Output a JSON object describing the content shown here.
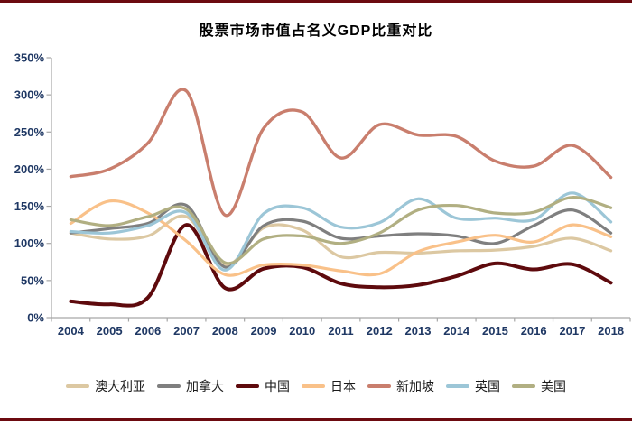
{
  "page": {
    "accent_color": "#6c0a10",
    "axis_label_color": "#1f3864",
    "axis_line_color": "#a6a6a6"
  },
  "chart_data": {
    "type": "line",
    "title": "股票市场市值占名义GDP比重对比",
    "xlabel": "",
    "ylabel": "",
    "x_labels": [
      "2004",
      "2005",
      "2006",
      "2007",
      "2008",
      "2009",
      "2010",
      "2011",
      "2012",
      "2013",
      "2014",
      "2015",
      "2016",
      "2017",
      "2018"
    ],
    "ylim": [
      0,
      350
    ],
    "y_ticks": {
      "values": [
        0,
        50,
        100,
        150,
        200,
        250,
        300,
        350
      ],
      "labels": [
        "0%",
        "50%",
        "100%",
        "150%",
        "200%",
        "250%",
        "300%",
        "350%"
      ]
    },
    "grid": false,
    "legend_position": "bottom",
    "series": [
      {
        "id": "australia",
        "name": "澳大利亚",
        "color": "#dcc8a2",
        "stroke_width": 3.2,
        "values": [
          114,
          106,
          110,
          136,
          70,
          121,
          118,
          82,
          88,
          87,
          90,
          91,
          96,
          107,
          90
        ]
      },
      {
        "id": "canada",
        "name": "加拿大",
        "color": "#7f7f7f",
        "stroke_width": 3.2,
        "values": [
          114,
          120,
          127,
          151,
          68,
          124,
          130,
          107,
          110,
          113,
          110,
          100,
          124,
          145,
          114
        ]
      },
      {
        "id": "china",
        "name": "中国",
        "color": "#5e0a0d",
        "stroke_width": 4,
        "values": [
          22,
          18,
          27,
          125,
          40,
          66,
          68,
          46,
          41,
          44,
          56,
          73,
          65,
          72,
          47
        ]
      },
      {
        "id": "japan",
        "name": "日本",
        "color": "#f9c189",
        "stroke_width": 3.2,
        "values": [
          127,
          157,
          141,
          103,
          58,
          71,
          71,
          63,
          59,
          89,
          102,
          111,
          102,
          125,
          109
        ]
      },
      {
        "id": "singapore",
        "name": "新加坡",
        "color": "#c97e6d",
        "stroke_width": 3.4,
        "values": [
          190,
          200,
          235,
          305,
          138,
          255,
          277,
          215,
          260,
          246,
          244,
          211,
          204,
          232,
          189
        ]
      },
      {
        "id": "uk",
        "name": "英国",
        "color": "#9cc6d7",
        "stroke_width": 3.2,
        "values": [
          116,
          114,
          124,
          141,
          64,
          140,
          148,
          122,
          128,
          160,
          134,
          134,
          132,
          168,
          129
        ]
      },
      {
        "id": "us",
        "name": "美国",
        "color": "#b1af82",
        "stroke_width": 3.2,
        "values": [
          132,
          124,
          136,
          146,
          74,
          106,
          110,
          100,
          114,
          145,
          151,
          141,
          142,
          162,
          148
        ]
      }
    ]
  }
}
